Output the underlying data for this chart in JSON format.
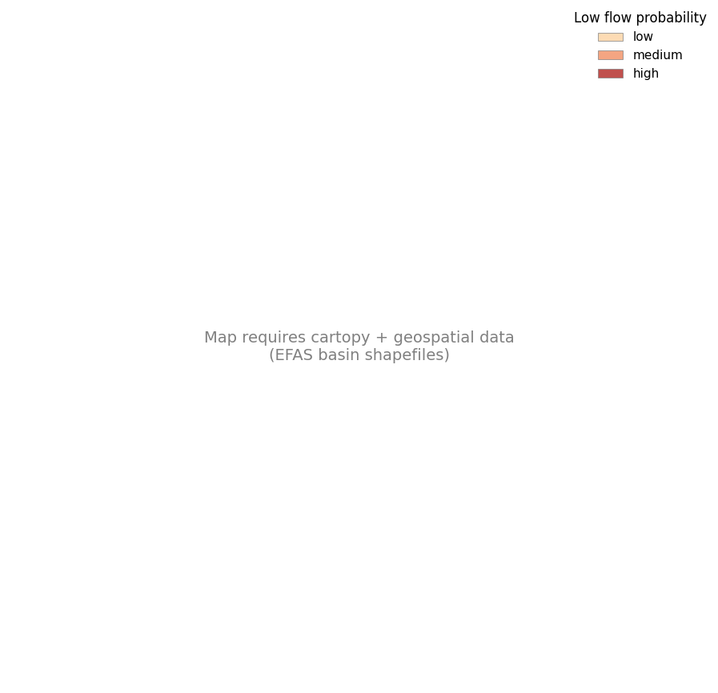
{
  "title": "",
  "legend_title": "Low flow probability",
  "legend_labels": [
    "low",
    "medium",
    "high"
  ],
  "legend_colors": [
    "#FDDBB4",
    "#F4A582",
    "#C0504D"
  ],
  "basin_fill_low": "#FDDBB4",
  "basin_fill_medium": "#F4A582",
  "basin_fill_high": "#C0504D",
  "basin_edge_color": "#808080",
  "coastline_color": "#404040",
  "river_color": "#CC0000",
  "river_linewidth": 0.5,
  "background_color": "#FFFFFF",
  "ocean_color": "#FFFFFF",
  "basin_linewidth": 0.3,
  "country_linewidth": 0.5,
  "extent": [
    -25,
    45,
    27,
    72
  ],
  "figsize": [
    8.97,
    8.66
  ],
  "dpi": 100,
  "legend_fontsize": 11,
  "legend_title_fontsize": 12
}
